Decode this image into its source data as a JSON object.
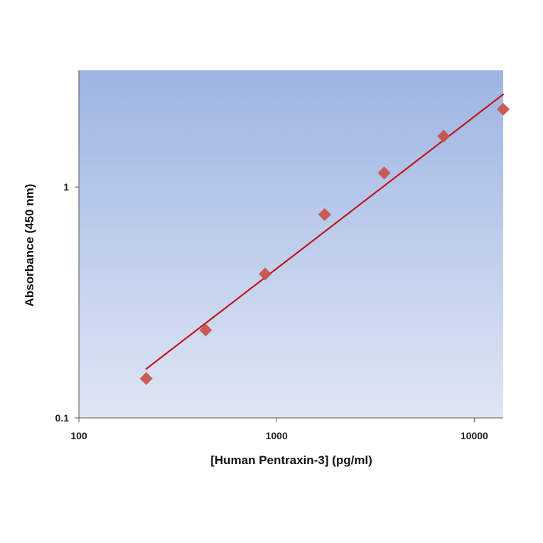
{
  "chart_data": {
    "type": "scatter",
    "title": "",
    "xlabel": "[Human Pentraxin-3] (pg/ml)",
    "ylabel": "Absorbance (450 nm)",
    "xscale": "log",
    "yscale": "log",
    "xlim": [
      100,
      14000
    ],
    "ylim": [
      0.1,
      3.2
    ],
    "x_ticks": [
      100,
      1000,
      10000
    ],
    "x_tick_labels": [
      "100",
      "1000",
      "10000"
    ],
    "y_ticks": [
      0.1,
      1
    ],
    "y_tick_labels": [
      "0.1",
      "1"
    ],
    "grid": false,
    "legend": "none",
    "series": [
      {
        "type": "scatter",
        "marker": "diamond",
        "color": "#c8504a",
        "x": [
          219,
          438,
          875,
          1750,
          3500,
          7000,
          14000
        ],
        "y": [
          0.148,
          0.24,
          0.42,
          0.76,
          1.15,
          1.66,
          2.17
        ]
      },
      {
        "type": "line",
        "fit": "power",
        "color": "#c0141c",
        "x": [
          219,
          14000
        ],
        "y": [
          0.163,
          2.52
        ]
      }
    ],
    "plot_background": [
      "#9db5e3",
      "#dfe6f4"
    ]
  }
}
